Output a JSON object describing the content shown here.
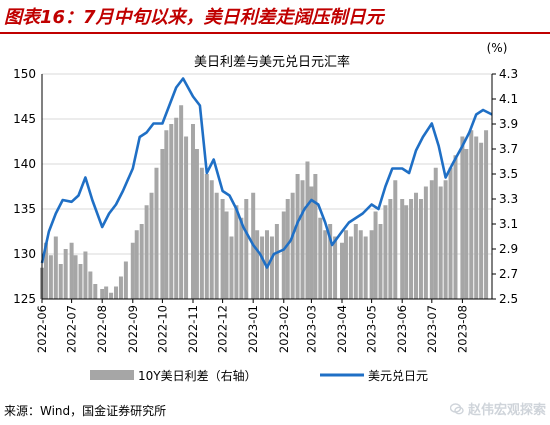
{
  "figure": {
    "title": "图表16：7月中旬以来，美日利差走阔压制日元",
    "source": "来源：Wind，国金证券研究所",
    "watermark": "赵伟宏观探索",
    "watermark_icon": "wechat-icon"
  },
  "colors": {
    "title_red": "#c00000",
    "bar_gray": "#a6a6a6",
    "line_blue": "#1f6fc5",
    "grid": "#d9d9d9",
    "watermark": "#cfd4da"
  },
  "chart_data": {
    "type": "combo",
    "title": "美日利差与美元兑日元汇率",
    "y_right_unit": "(%)",
    "ylim_left": [
      125,
      150
    ],
    "yticks_left": [
      125,
      130,
      135,
      140,
      145,
      150
    ],
    "ylim_right": [
      2.5,
      4.3
    ],
    "yticks_right": [
      "2.5",
      "2.7",
      "2.9",
      "3.1",
      "3.3",
      "3.5",
      "3.7",
      "3.9",
      "4.1",
      "4.3"
    ],
    "x_start": "2022-06-01",
    "x_end": "2023-08-31",
    "x_ticks": [
      "2022-06",
      "2022-07",
      "2022-08",
      "2022-09",
      "2022-10",
      "2022-11",
      "2022-12",
      "2023-01",
      "2023-02",
      "2023-03",
      "2023-04",
      "2023-05",
      "2023-06",
      "2023-07",
      "2023-08"
    ],
    "grid": true,
    "legend_position": "bottom",
    "series": [
      {
        "name": "10Y美日利差（右轴）",
        "type": "bar",
        "axis": "right",
        "dates": [
          "2022-06-01",
          "2022-06-05",
          "2022-06-10",
          "2022-06-15",
          "2022-06-20",
          "2022-06-25",
          "2022-07-01",
          "2022-07-05",
          "2022-07-10",
          "2022-07-15",
          "2022-07-20",
          "2022-07-25",
          "2022-08-01",
          "2022-08-05",
          "2022-08-10",
          "2022-08-15",
          "2022-08-20",
          "2022-08-25",
          "2022-09-01",
          "2022-09-05",
          "2022-09-10",
          "2022-09-15",
          "2022-09-20",
          "2022-09-25",
          "2022-10-01",
          "2022-10-05",
          "2022-10-10",
          "2022-10-15",
          "2022-10-20",
          "2022-10-25",
          "2022-11-01",
          "2022-11-05",
          "2022-11-10",
          "2022-11-15",
          "2022-11-20",
          "2022-11-25",
          "2022-12-01",
          "2022-12-05",
          "2022-12-10",
          "2022-12-15",
          "2022-12-20",
          "2022-12-25",
          "2023-01-01",
          "2023-01-05",
          "2023-01-10",
          "2023-01-15",
          "2023-01-20",
          "2023-01-25",
          "2023-02-01",
          "2023-02-05",
          "2023-02-10",
          "2023-02-15",
          "2023-02-20",
          "2023-02-25",
          "2023-03-01",
          "2023-03-05",
          "2023-03-10",
          "2023-03-15",
          "2023-03-20",
          "2023-03-25",
          "2023-04-01",
          "2023-04-05",
          "2023-04-10",
          "2023-04-15",
          "2023-04-20",
          "2023-04-25",
          "2023-05-01",
          "2023-05-05",
          "2023-05-10",
          "2023-05-15",
          "2023-05-20",
          "2023-05-25",
          "2023-06-01",
          "2023-06-05",
          "2023-06-10",
          "2023-06-15",
          "2023-06-20",
          "2023-06-25",
          "2023-07-01",
          "2023-07-05",
          "2023-07-10",
          "2023-07-15",
          "2023-07-20",
          "2023-07-25",
          "2023-08-01",
          "2023-08-05",
          "2023-08-10",
          "2023-08-15",
          "2023-08-20",
          "2023-08-25"
        ],
        "values": [
          2.75,
          2.95,
          2.85,
          3.0,
          2.78,
          2.9,
          2.95,
          2.85,
          2.78,
          2.88,
          2.72,
          2.62,
          2.58,
          2.6,
          2.55,
          2.6,
          2.68,
          2.8,
          2.95,
          3.05,
          3.1,
          3.25,
          3.35,
          3.55,
          3.7,
          3.85,
          3.9,
          3.95,
          4.05,
          3.8,
          3.9,
          3.7,
          3.55,
          3.5,
          3.45,
          3.35,
          3.3,
          3.2,
          3.0,
          3.25,
          3.15,
          3.3,
          3.35,
          3.05,
          3.0,
          3.05,
          3.0,
          3.1,
          3.2,
          3.3,
          3.35,
          3.5,
          3.45,
          3.6,
          3.4,
          3.5,
          3.15,
          3.05,
          3.1,
          3.0,
          2.95,
          3.05,
          3.0,
          3.1,
          3.05,
          3.0,
          3.05,
          3.2,
          3.1,
          3.25,
          3.3,
          3.45,
          3.3,
          3.25,
          3.3,
          3.35,
          3.3,
          3.4,
          3.45,
          3.55,
          3.4,
          3.45,
          3.55,
          3.65,
          3.8,
          3.7,
          3.85,
          3.8,
          3.75,
          3.85
        ]
      },
      {
        "name": "美元兑日元",
        "type": "line",
        "axis": "left",
        "dates": [
          "2022-06-01",
          "2022-06-08",
          "2022-06-15",
          "2022-06-22",
          "2022-07-01",
          "2022-07-08",
          "2022-07-15",
          "2022-07-22",
          "2022-08-01",
          "2022-08-08",
          "2022-08-15",
          "2022-08-22",
          "2022-09-01",
          "2022-09-08",
          "2022-09-15",
          "2022-09-22",
          "2022-10-01",
          "2022-10-08",
          "2022-10-15",
          "2022-10-22",
          "2022-11-01",
          "2022-11-08",
          "2022-11-15",
          "2022-11-22",
          "2022-12-01",
          "2022-12-08",
          "2022-12-15",
          "2022-12-22",
          "2023-01-01",
          "2023-01-08",
          "2023-01-15",
          "2023-01-22",
          "2023-02-01",
          "2023-02-08",
          "2023-02-15",
          "2023-02-22",
          "2023-03-01",
          "2023-03-08",
          "2023-03-15",
          "2023-03-22",
          "2023-04-01",
          "2023-04-08",
          "2023-04-15",
          "2023-04-22",
          "2023-05-01",
          "2023-05-08",
          "2023-05-15",
          "2023-05-22",
          "2023-06-01",
          "2023-06-08",
          "2023-06-15",
          "2023-06-22",
          "2023-07-01",
          "2023-07-08",
          "2023-07-15",
          "2023-07-22",
          "2023-08-01",
          "2023-08-08",
          "2023-08-15",
          "2023-08-22",
          "2023-08-31"
        ],
        "values": [
          129.0,
          132.5,
          134.5,
          136.0,
          135.8,
          136.5,
          138.5,
          136.0,
          133.0,
          134.5,
          135.5,
          137.0,
          139.5,
          143.0,
          143.5,
          144.5,
          144.5,
          146.5,
          148.5,
          149.5,
          147.5,
          146.5,
          139.0,
          140.5,
          137.0,
          136.5,
          135.0,
          133.0,
          131.0,
          130.0,
          128.5,
          130.0,
          130.5,
          131.5,
          133.5,
          135.0,
          136.0,
          135.5,
          133.5,
          131.0,
          132.5,
          133.5,
          134.0,
          134.5,
          135.5,
          135.0,
          137.5,
          139.5,
          139.5,
          139.0,
          141.5,
          143.0,
          144.5,
          142.0,
          138.5,
          140.0,
          142.0,
          143.5,
          145.5,
          146.0,
          145.5
        ]
      }
    ]
  }
}
